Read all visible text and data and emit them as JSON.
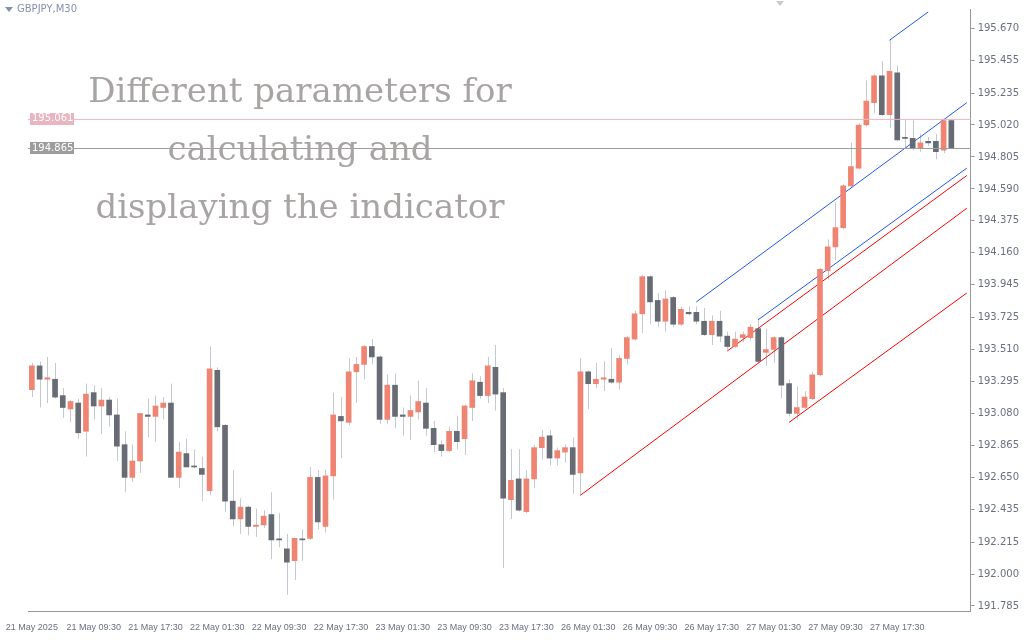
{
  "chart_data": {
    "type": "candlestick",
    "title": "GBPJPY,M30",
    "annotations": [
      "Different parameters for calculating and displaying the indicator"
    ],
    "categories": [
      "21 May 2025",
      null,
      null,
      null,
      null,
      null,
      null,
      null,
      "21 May 09:30",
      null,
      null,
      null,
      null,
      null,
      null,
      null,
      "21 May 17:30",
      null,
      null,
      null,
      null,
      null,
      null,
      null,
      "22 May 01:30",
      null,
      null,
      null,
      null,
      null,
      null,
      null,
      "22 May 09:30",
      null,
      null,
      null,
      null,
      null,
      null,
      null,
      "22 May 17:30",
      null,
      null,
      null,
      null,
      null,
      null,
      null,
      "23 May 01:30",
      null,
      null,
      null,
      null,
      null,
      null,
      null,
      "23 May 09:30",
      null,
      null,
      null,
      null,
      null,
      null,
      null,
      "23 May 17:30",
      null,
      null,
      null,
      null,
      null,
      null,
      null,
      "26 May 01:30",
      null,
      null,
      null,
      null,
      null,
      null,
      null,
      "26 May 09:30",
      null,
      null,
      null,
      null,
      null,
      null,
      null,
      "26 May 17:30",
      null,
      null,
      null,
      null,
      null,
      null,
      null,
      "27 May 01:30",
      null,
      null,
      null,
      null,
      null,
      null,
      null,
      "27 May 09:30",
      null,
      null,
      null,
      null,
      null,
      null,
      null,
      "27 May 17:30",
      null,
      null,
      null,
      null,
      null,
      null,
      null,
      null,
      null
    ],
    "ohlc": [
      [
        193.24,
        193.42,
        193.19,
        193.4
      ],
      [
        193.4,
        193.43,
        193.12,
        193.31
      ],
      [
        193.31,
        193.46,
        193.15,
        193.32
      ],
      [
        193.31,
        193.42,
        193.18,
        193.19
      ],
      [
        193.2,
        193.25,
        193.05,
        193.12
      ],
      [
        193.11,
        193.17,
        193.02,
        193.16
      ],
      [
        193.15,
        193.18,
        192.91,
        192.95
      ],
      [
        192.96,
        193.28,
        192.79,
        193.21
      ],
      [
        193.22,
        193.27,
        193.04,
        193.13
      ],
      [
        193.13,
        193.25,
        192.94,
        193.17
      ],
      [
        193.17,
        193.19,
        192.99,
        193.07
      ],
      [
        193.07,
        193.18,
        192.76,
        192.86
      ],
      [
        192.87,
        192.96,
        192.55,
        192.65
      ],
      [
        192.65,
        192.87,
        192.62,
        192.76
      ],
      [
        192.76,
        193.08,
        192.68,
        193.08
      ],
      [
        193.07,
        193.18,
        192.92,
        193.06
      ],
      [
        193.06,
        193.2,
        192.89,
        193.13
      ],
      [
        193.12,
        193.19,
        193.04,
        193.15
      ],
      [
        193.15,
        193.28,
        192.65,
        192.65
      ],
      [
        192.65,
        192.89,
        192.58,
        192.82
      ],
      [
        192.81,
        192.91,
        192.72,
        192.72
      ],
      [
        192.72,
        192.84,
        192.71,
        192.72
      ],
      [
        192.71,
        192.79,
        192.49,
        192.67
      ],
      [
        192.56,
        193.53,
        192.53,
        193.38
      ],
      [
        193.37,
        193.39,
        192.96,
        192.99
      ],
      [
        193.0,
        193.01,
        192.42,
        192.49
      ],
      [
        192.49,
        192.7,
        192.32,
        192.37
      ],
      [
        192.37,
        192.51,
        192.27,
        192.45
      ],
      [
        192.45,
        192.46,
        192.26,
        192.32
      ],
      [
        192.32,
        192.44,
        192.25,
        192.33
      ],
      [
        192.33,
        192.43,
        192.31,
        192.39
      ],
      [
        192.4,
        192.55,
        192.1,
        192.23
      ],
      [
        192.23,
        192.41,
        192.18,
        192.23
      ],
      [
        192.17,
        192.27,
        191.86,
        192.08
      ],
      [
        192.09,
        192.24,
        191.96,
        192.24
      ],
      [
        192.23,
        192.3,
        192.09,
        192.23
      ],
      [
        192.24,
        192.72,
        192.23,
        192.65
      ],
      [
        192.65,
        192.7,
        192.3,
        192.35
      ],
      [
        192.32,
        192.7,
        192.28,
        192.66
      ],
      [
        192.66,
        193.22,
        192.5,
        193.07
      ],
      [
        193.06,
        193.19,
        192.78,
        193.03
      ],
      [
        193.02,
        193.45,
        193.0,
        193.36
      ],
      [
        193.36,
        193.46,
        193.15,
        193.41
      ],
      [
        193.41,
        193.54,
        193.31,
        193.53
      ],
      [
        193.53,
        193.58,
        193.41,
        193.46
      ],
      [
        193.46,
        193.47,
        193.01,
        193.04
      ],
      [
        193.04,
        193.34,
        193.01,
        193.27
      ],
      [
        193.27,
        193.35,
        192.98,
        193.06
      ],
      [
        193.07,
        193.12,
        192.93,
        193.06
      ],
      [
        193.06,
        193.2,
        192.9,
        193.1
      ],
      [
        193.09,
        193.3,
        193.04,
        193.16
      ],
      [
        193.15,
        193.25,
        192.93,
        192.98
      ],
      [
        192.98,
        193.03,
        192.82,
        192.87
      ],
      [
        192.87,
        192.9,
        192.79,
        192.83
      ],
      [
        192.83,
        192.99,
        192.82,
        192.96
      ],
      [
        192.96,
        193.06,
        192.84,
        192.89
      ],
      [
        192.91,
        193.14,
        192.8,
        193.13
      ],
      [
        193.12,
        193.35,
        193.03,
        193.3
      ],
      [
        193.29,
        193.33,
        193.18,
        193.2
      ],
      [
        193.2,
        193.46,
        193.15,
        193.4
      ],
      [
        193.39,
        193.54,
        193.1,
        193.21
      ],
      [
        193.22,
        193.25,
        192.04,
        192.51
      ],
      [
        192.5,
        192.84,
        192.37,
        192.63
      ],
      [
        192.64,
        192.84,
        192.42,
        192.43
      ],
      [
        192.42,
        192.7,
        192.41,
        192.64
      ],
      [
        192.64,
        192.87,
        192.58,
        192.85
      ],
      [
        192.85,
        192.97,
        192.77,
        192.92
      ],
      [
        192.93,
        192.97,
        192.73,
        192.78
      ],
      [
        192.78,
        192.85,
        192.73,
        192.83
      ],
      [
        192.82,
        192.87,
        192.75,
        192.85
      ],
      [
        192.85,
        192.92,
        192.54,
        192.67
      ],
      [
        192.68,
        193.45,
        192.53,
        193.36
      ],
      [
        193.36,
        193.37,
        193.11,
        193.28
      ],
      [
        193.28,
        193.42,
        193.25,
        193.31
      ],
      [
        193.31,
        193.43,
        193.23,
        193.32
      ],
      [
        193.31,
        193.52,
        193.28,
        193.29
      ],
      [
        193.29,
        193.47,
        193.24,
        193.45
      ],
      [
        193.45,
        193.6,
        193.41,
        193.59
      ],
      [
        193.58,
        193.77,
        193.57,
        193.75
      ],
      [
        193.75,
        194.01,
        193.62,
        194.0
      ],
      [
        194.0,
        194.01,
        193.68,
        193.83
      ],
      [
        193.84,
        193.89,
        193.66,
        193.7
      ],
      [
        193.7,
        193.91,
        193.63,
        193.85
      ],
      [
        193.86,
        193.87,
        193.66,
        193.68
      ],
      [
        193.68,
        193.8,
        193.67,
        193.78
      ],
      [
        193.76,
        193.8,
        193.74,
        193.75
      ],
      [
        193.76,
        193.8,
        193.68,
        193.7
      ],
      [
        193.7,
        193.79,
        193.6,
        193.61
      ],
      [
        193.61,
        193.74,
        193.54,
        193.7
      ],
      [
        193.7,
        193.77,
        193.56,
        193.6
      ],
      [
        193.6,
        193.63,
        193.51,
        193.53
      ],
      [
        193.53,
        193.63,
        193.52,
        193.58
      ],
      [
        193.59,
        193.63,
        193.56,
        193.61
      ],
      [
        193.59,
        193.68,
        193.57,
        193.66
      ],
      [
        193.65,
        193.72,
        193.42,
        193.43
      ],
      [
        193.49,
        193.65,
        193.4,
        193.51
      ],
      [
        193.51,
        193.6,
        193.42,
        193.59
      ],
      [
        193.59,
        193.6,
        193.18,
        193.27
      ],
      [
        193.28,
        193.31,
        193.06,
        193.08
      ],
      [
        193.08,
        193.26,
        193.04,
        193.12
      ],
      [
        193.12,
        193.23,
        193.11,
        193.19
      ],
      [
        193.18,
        193.36,
        193.17,
        193.34
      ],
      [
        193.34,
        194.06,
        193.33,
        194.05
      ],
      [
        194.04,
        194.25,
        193.98,
        194.2
      ],
      [
        194.2,
        194.5,
        194.11,
        194.33
      ],
      [
        194.33,
        194.62,
        194.32,
        194.61
      ],
      [
        194.61,
        194.9,
        194.6,
        194.74
      ],
      [
        194.73,
        195.03,
        194.72,
        195.02
      ],
      [
        195.02,
        195.32,
        195.01,
        195.18
      ],
      [
        195.17,
        195.36,
        195.1,
        195.35
      ],
      [
        195.35,
        195.45,
        195.08,
        195.09
      ],
      [
        195.09,
        195.6,
        195.0,
        195.38
      ],
      [
        195.37,
        195.42,
        194.91,
        194.92
      ],
      [
        194.93,
        195.06,
        194.87,
        194.93
      ],
      [
        194.93,
        195.05,
        194.85,
        194.86
      ],
      [
        194.86,
        194.96,
        194.84,
        194.9
      ],
      [
        194.91,
        194.94,
        194.88,
        194.9
      ],
      [
        194.91,
        194.96,
        194.79,
        194.84
      ],
      [
        194.85,
        195.06,
        194.83,
        195.05
      ],
      [
        195.05,
        195.06,
        194.86,
        194.86
      ],
      null,
      null
    ],
    "colors": [
      "#f08472",
      "#676c74",
      "#f08472",
      "#676c74",
      "#676c74",
      "#f08472",
      "#676c74",
      "#f08472",
      "#676c74",
      "#f08472",
      "#676c74",
      "#676c74",
      "#676c74",
      "#f08472",
      "#f08472",
      "#676c74",
      "#f08472",
      "#f08472",
      "#676c74",
      "#f08472",
      "#676c74",
      "#676c74",
      "#676c74",
      "#f08472",
      "#676c74",
      "#676c74",
      "#676c74",
      "#f08472",
      "#676c74",
      "#f08472",
      "#f08472",
      "#676c74",
      "#676c74",
      "#676c74",
      "#f08472",
      "#676c74",
      "#f08472",
      "#676c74",
      "#f08472",
      "#f08472",
      "#676c74",
      "#f08472",
      "#f08472",
      "#f08472",
      "#676c74",
      "#676c74",
      "#f08472",
      "#676c74",
      "#676c74",
      "#f08472",
      "#f08472",
      "#676c74",
      "#676c74",
      "#676c74",
      "#f08472",
      "#676c74",
      "#f08472",
      "#f08472",
      "#676c74",
      "#f08472",
      "#676c74",
      "#676c74",
      "#f08472",
      "#676c74",
      "#f08472",
      "#f08472",
      "#f08472",
      "#676c74",
      "#f08472",
      "#f08472",
      "#676c74",
      "#f08472",
      "#676c74",
      "#f08472",
      "#f08472",
      "#676c74",
      "#f08472",
      "#f08472",
      "#f08472",
      "#f08472",
      "#676c74",
      "#676c74",
      "#f08472",
      "#676c74",
      "#f08472",
      "#676c74",
      "#676c74",
      "#676c74",
      "#f08472",
      "#676c74",
      "#676c74",
      "#f08472",
      "#f08472",
      "#f08472",
      "#676c74",
      "#f08472",
      "#f08472",
      "#676c74",
      "#676c74",
      "#f08472",
      "#f08472",
      "#f08472",
      "#f08472",
      "#f08472",
      "#f08472",
      "#f08472",
      "#f08472",
      "#f08472",
      "#f08472",
      "#f08472",
      "#676c74",
      "#f08472",
      "#676c74",
      "#676c74",
      "#676c74",
      "#f08472",
      "#676c74",
      "#676c74",
      "#f08472",
      "#676c74",
      null,
      null
    ],
    "series": [
      {
        "type": "line",
        "color": "#ff0000",
        "values": [
          null,
          null,
          null,
          null,
          null,
          null,
          null,
          null,
          null,
          null,
          null,
          null,
          null,
          null,
          null,
          null,
          null,
          null,
          null,
          null,
          null,
          null,
          null,
          null,
          null,
          null,
          null,
          null,
          null,
          null,
          null,
          null,
          null,
          null,
          null,
          null,
          null,
          null,
          null,
          null,
          null,
          null,
          null,
          null,
          null,
          null,
          null,
          null,
          null,
          null,
          null,
          null,
          null,
          null,
          null,
          null,
          null,
          null,
          null,
          null,
          null,
          null,
          null,
          null,
          null,
          null,
          null,
          null,
          null,
          null,
          null,
          192.53,
          null,
          null,
          null,
          null,
          null,
          null,
          null,
          null,
          null,
          null,
          null,
          null,
          null,
          null,
          null,
          null,
          null,
          null,
          null,
          null,
          null,
          null,
          null,
          null,
          null,
          null,
          null,
          null,
          null,
          null,
          null,
          null,
          null,
          null,
          null,
          null,
          null,
          null,
          null,
          null,
          null,
          null,
          null,
          null,
          null,
          null,
          null,
          null,
          null,
          194.46
        ]
      },
      {
        "type": "line",
        "color": "#ff0000",
        "values": [
          null,
          null,
          null,
          null,
          null,
          null,
          null,
          null,
          null,
          null,
          null,
          null,
          null,
          null,
          null,
          null,
          null,
          null,
          null,
          null,
          null,
          null,
          null,
          null,
          null,
          null,
          null,
          null,
          null,
          null,
          null,
          null,
          null,
          null,
          null,
          null,
          null,
          null,
          null,
          null,
          null,
          null,
          null,
          null,
          null,
          null,
          null,
          null,
          null,
          null,
          null,
          null,
          null,
          null,
          null,
          null,
          null,
          null,
          null,
          null,
          null,
          null,
          null,
          null,
          null,
          null,
          null,
          null,
          null,
          null,
          null,
          null,
          null,
          null,
          null,
          null,
          null,
          null,
          null,
          null,
          null,
          null,
          null,
          null,
          null,
          null,
          null,
          null,
          null,
          null,
          193.5,
          null,
          null,
          null,
          null,
          null,
          null,
          null,
          null,
          null,
          null,
          null,
          null,
          null,
          null,
          null,
          null,
          null,
          null,
          null,
          null,
          null,
          null,
          null,
          null,
          null,
          null,
          null,
          null,
          null,
          null,
          194.68
        ]
      },
      {
        "type": "line",
        "color": "#ff0000",
        "values": [
          null,
          null,
          null,
          null,
          null,
          null,
          null,
          null,
          null,
          null,
          null,
          null,
          null,
          null,
          null,
          null,
          null,
          null,
          null,
          null,
          null,
          null,
          null,
          null,
          null,
          null,
          null,
          null,
          null,
          null,
          null,
          null,
          null,
          null,
          null,
          null,
          null,
          null,
          null,
          null,
          null,
          null,
          null,
          null,
          null,
          null,
          null,
          null,
          null,
          null,
          null,
          null,
          null,
          null,
          null,
          null,
          null,
          null,
          null,
          null,
          null,
          null,
          null,
          null,
          null,
          null,
          null,
          null,
          null,
          null,
          null,
          null,
          null,
          null,
          null,
          null,
          null,
          null,
          null,
          null,
          null,
          null,
          null,
          null,
          null,
          null,
          null,
          null,
          null,
          null,
          null,
          null,
          null,
          null,
          null,
          null,
          null,
          null,
          193.02,
          null,
          null,
          null,
          null,
          null,
          null,
          null,
          null,
          null,
          null,
          null,
          null,
          null,
          null,
          null,
          null,
          null,
          null,
          null,
          null,
          null,
          null,
          193.89
        ]
      },
      {
        "type": "line",
        "color": "#2255ee",
        "values": [
          null,
          null,
          null,
          null,
          null,
          null,
          null,
          null,
          null,
          null,
          null,
          null,
          null,
          null,
          null,
          null,
          null,
          null,
          null,
          null,
          null,
          null,
          null,
          null,
          null,
          null,
          null,
          null,
          null,
          null,
          null,
          null,
          null,
          null,
          null,
          null,
          null,
          null,
          null,
          null,
          null,
          null,
          null,
          null,
          null,
          null,
          null,
          null,
          null,
          null,
          null,
          null,
          null,
          null,
          null,
          null,
          null,
          null,
          null,
          null,
          null,
          null,
          null,
          null,
          null,
          null,
          null,
          null,
          null,
          null,
          null,
          null,
          null,
          null,
          null,
          null,
          null,
          null,
          null,
          null,
          null,
          null,
          null,
          null,
          null,
          null,
          193.83,
          null,
          null,
          null,
          null,
          null,
          null,
          null,
          null,
          null,
          null,
          null,
          null,
          null,
          null,
          null,
          null,
          null,
          null,
          null,
          null,
          null,
          null,
          null,
          null,
          null,
          null,
          null,
          null,
          null,
          null,
          null,
          null,
          null,
          null,
          195.17
        ]
      },
      {
        "type": "line",
        "color": "#2255ee",
        "values": [
          null,
          null,
          null,
          null,
          null,
          null,
          null,
          null,
          null,
          null,
          null,
          null,
          null,
          null,
          null,
          null,
          null,
          null,
          null,
          null,
          null,
          null,
          null,
          null,
          null,
          null,
          null,
          null,
          null,
          null,
          null,
          null,
          null,
          null,
          null,
          null,
          null,
          null,
          null,
          null,
          null,
          null,
          null,
          null,
          null,
          null,
          null,
          null,
          null,
          null,
          null,
          null,
          null,
          null,
          null,
          null,
          null,
          null,
          null,
          null,
          null,
          null,
          null,
          null,
          null,
          null,
          null,
          null,
          null,
          null,
          null,
          null,
          null,
          null,
          null,
          null,
          null,
          null,
          null,
          null,
          null,
          null,
          null,
          null,
          null,
          null,
          null,
          null,
          null,
          null,
          null,
          null,
          null,
          null,
          193.71,
          null,
          null,
          null,
          null,
          null,
          null,
          null,
          null,
          null,
          null,
          null,
          null,
          null,
          null,
          null,
          null,
          null,
          null,
          null,
          null,
          null,
          null,
          null,
          null,
          null,
          null,
          194.73
        ]
      },
      {
        "type": "line",
        "color": "#2255ee",
        "values": [
          null,
          null,
          null,
          null,
          null,
          null,
          null,
          null,
          null,
          null,
          null,
          null,
          null,
          null,
          null,
          null,
          null,
          null,
          null,
          null,
          null,
          null,
          null,
          null,
          null,
          null,
          null,
          null,
          null,
          null,
          null,
          null,
          null,
          null,
          null,
          null,
          null,
          null,
          null,
          null,
          null,
          null,
          null,
          null,
          null,
          null,
          null,
          null,
          null,
          null,
          null,
          null,
          null,
          null,
          null,
          null,
          null,
          null,
          null,
          null,
          null,
          null,
          null,
          null,
          null,
          null,
          null,
          null,
          null,
          null,
          null,
          null,
          null,
          null,
          null,
          null,
          null,
          null,
          null,
          null,
          null,
          null,
          null,
          null,
          null,
          null,
          null,
          null,
          null,
          null,
          null,
          null,
          null,
          null,
          null,
          null,
          null,
          null,
          null,
          null,
          null,
          null,
          null,
          null,
          null,
          null,
          null,
          null,
          null,
          null,
          null,
          195.59,
          null,
          null,
          null,
          null,
          195.78,
          null,
          null,
          null,
          null,
          null
        ]
      }
    ],
    "ref_lines": [
      {
        "axis": "y",
        "value": 195.061,
        "label": "195.061",
        "color": "#e8b5c0"
      },
      {
        "axis": "y",
        "value": 194.865,
        "label": "194.865",
        "color": "#9d9d9d"
      }
    ],
    "ylim": [
      191.75,
      195.8
    ],
    "yticks": [
      {
        "value": 191.785,
        "label": "191.785"
      },
      {
        "value": 192.0,
        "label": "192.000"
      },
      {
        "value": 192.215,
        "label": "192.215"
      },
      {
        "value": 192.435,
        "label": "192.435"
      },
      {
        "value": 192.65,
        "label": "192.650"
      },
      {
        "value": 192.865,
        "label": "192.865"
      },
      {
        "value": 193.08,
        "label": "193.080"
      },
      {
        "value": 193.295,
        "label": "193.295"
      },
      {
        "value": 193.51,
        "label": "193.510"
      },
      {
        "value": 193.725,
        "label": "193.725"
      },
      {
        "value": 193.945,
        "label": "193.945"
      },
      {
        "value": 194.16,
        "label": "194.160"
      },
      {
        "value": 194.375,
        "label": "194.375"
      },
      {
        "value": 194.59,
        "label": "194.590"
      },
      {
        "value": 194.805,
        "label": "194.805"
      },
      {
        "value": 195.02,
        "label": "195.020"
      },
      {
        "value": 195.235,
        "label": "195.235"
      },
      {
        "value": 195.455,
        "label": "195.455"
      },
      {
        "value": 195.67,
        "label": "195.670"
      }
    ],
    "grid": false,
    "legend": false
  }
}
